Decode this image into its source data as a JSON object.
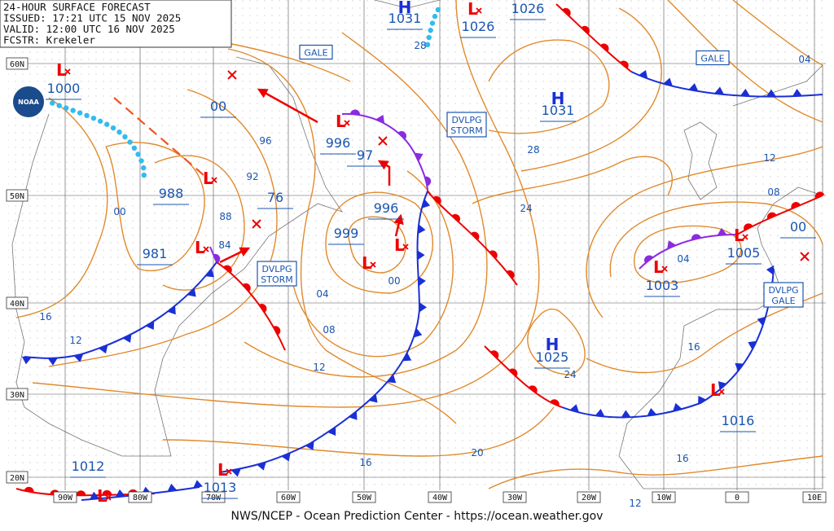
{
  "header": {
    "lines": [
      "24-HOUR SURFACE FORECAST",
      "ISSUED: 17:21 UTC 15 NOV 2025",
      "VALID:  12:00 UTC 16 NOV 2025",
      "FCSTR:  Krekeler"
    ]
  },
  "logo": "NOAA",
  "high_symbol": "H",
  "low_symbol": "L",
  "pressure_values": [
    "1031",
    "1026",
    "1026",
    "1000",
    "00",
    "1031",
    "996",
    "97",
    "988",
    "76",
    "996",
    "00",
    "999",
    "981",
    "1005",
    "1003",
    "1025",
    "1016",
    "1012",
    "1013"
  ],
  "isobar_labels": [
    "96",
    "92",
    "88",
    "84",
    "00",
    "16",
    "12",
    "04",
    "08",
    "12",
    "16",
    "20",
    "24",
    "28",
    "28",
    "24",
    "12",
    "08",
    "04",
    "16",
    "16",
    "12",
    "04",
    "00"
  ],
  "warnings": [
    {
      "lines": [
        "GALE"
      ]
    },
    {
      "lines": [
        "GALE"
      ]
    },
    {
      "lines": [
        "DVLPG",
        "STORM"
      ]
    },
    {
      "lines": [
        "DVLPG",
        "STORM"
      ]
    },
    {
      "lines": [
        "DVLPG",
        "GALE"
      ]
    }
  ],
  "lat_labels": [
    "60N",
    "50N",
    "40N",
    "30N",
    "20N"
  ],
  "lon_labels": [
    "90W",
    "80W",
    "70W",
    "60W",
    "50W",
    "40W",
    "30W",
    "20W",
    "10W",
    "0",
    "10E"
  ],
  "footer": "NWS/NCEP - Ocean Prediction Center - https://ocean.weather.gov"
}
